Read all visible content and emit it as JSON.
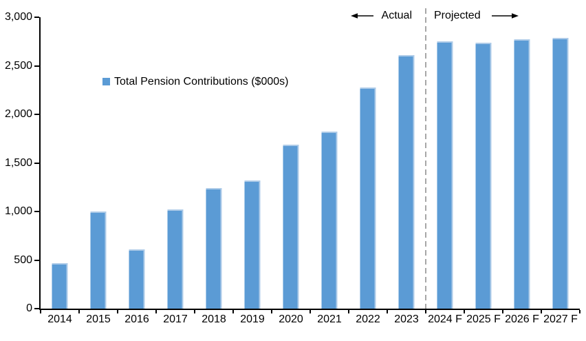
{
  "chart_data": {
    "type": "bar",
    "title": "",
    "xlabel": "",
    "ylabel": "",
    "legend": {
      "label": "Total Pension Contributions ($000s)",
      "position": "inside-upper-left",
      "marker_color": "#5B9BD5"
    },
    "categories": [
      "2014",
      "2015",
      "2016",
      "2017",
      "2018",
      "2019",
      "2020",
      "2021",
      "2022",
      "2023",
      "2024 F",
      "2025 F",
      "2026 F",
      "2027 F"
    ],
    "values": [
      470,
      1000,
      610,
      1020,
      1240,
      1320,
      1690,
      1820,
      2280,
      2610,
      2750,
      2740,
      2770,
      2790
    ],
    "ylim": [
      0,
      3000
    ],
    "ytick_step": 500,
    "ytick_labels": [
      "0",
      "500",
      "1,000",
      "1,500",
      "2,000",
      "2,500",
      "3,000"
    ],
    "grid": false,
    "bar_color": "#5B9BD5",
    "bar_edge_color": "#AECBE8",
    "axis_color": "#000000",
    "annotations": {
      "actual_label": "Actual",
      "projected_label": "Projected",
      "divider_boundary_index": 10,
      "divider_color": "#A6A6A6",
      "divider_style": "dashed"
    }
  }
}
